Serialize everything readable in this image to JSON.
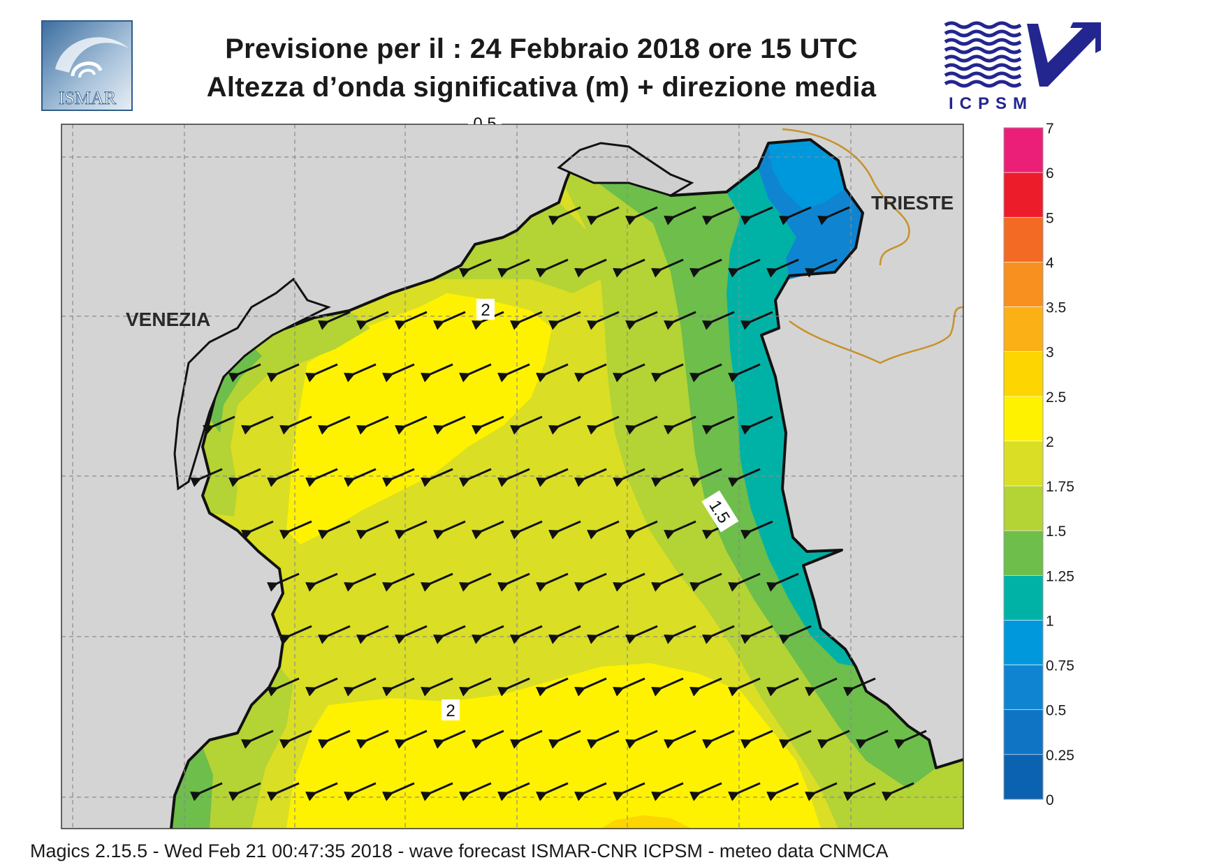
{
  "header": {
    "line1": "Previsione per il  :  24  Febbraio 2018   ore 15 UTC",
    "line2": "Altezza d’onda significativa (m) + direzione media"
  },
  "logos": {
    "left": {
      "name": "ismar-logo",
      "text": "ISMAR"
    },
    "right": {
      "name": "icpsm-logo",
      "text": "ICPSM"
    }
  },
  "map": {
    "region": "Northern Adriatic Sea",
    "place_labels": [
      "VENEZIA",
      "TRIESTE"
    ],
    "contour_labels": [
      "2",
      "2",
      "1.5",
      "0.5"
    ],
    "arrow_direction": "towards south-west (wind/wave from north-east)",
    "land_color": "#d4d4d4",
    "coast_color": "#111111",
    "border_color": "#c8912a",
    "grid_color": "#8a8a8a"
  },
  "colorbar": {
    "levels": [
      "7",
      "6",
      "5",
      "4",
      "3.5",
      "3",
      "2.5",
      "2",
      "1.75",
      "1.5",
      "1.25",
      "1",
      "0.75",
      "0.5",
      "0.25",
      "0"
    ],
    "colors_top_to_bottom": [
      "#ec1f78",
      "#ec1c2a",
      "#f26a24",
      "#f7901e",
      "#fbb116",
      "#fdd500",
      "#fff200",
      "#dade25",
      "#b4d334",
      "#6dbe4b",
      "#00b2a6",
      "#0098dc",
      "#0f85d2",
      "#0f74c4",
      "#0b62b0"
    ]
  },
  "footer": {
    "text": "Magics 2.15.5 - Wed Feb 21 00:47:35 2018 - wave forecast  ISMAR-CNR  ICPSM - meteo data   CNMCA"
  }
}
